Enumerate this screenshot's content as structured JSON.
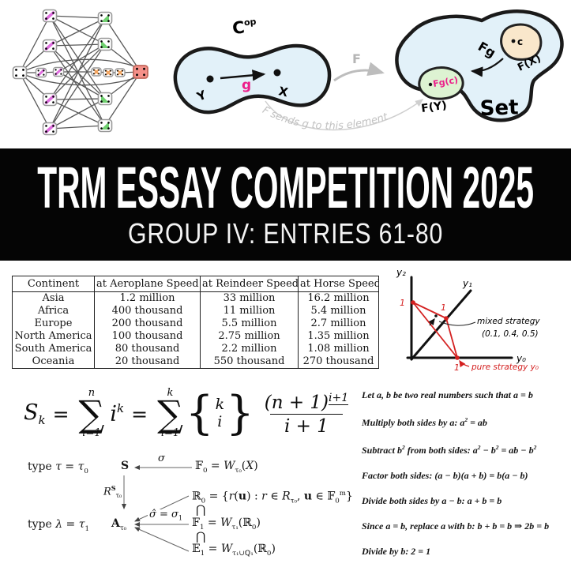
{
  "banner": {
    "title": "TRM ESSAY COMPETITION 2025",
    "subtitle": "GROUP IV: ENTRIES 61-80"
  },
  "category_diagram": {
    "cop_base": "C",
    "cop_sup": "op",
    "object_y": "Y",
    "object_x": "X",
    "morphism_g": "g",
    "functor_f": "F",
    "annotation": "F sends g to this element",
    "fg_arrow": "Fg",
    "element_c": "c",
    "fx_label": "F(X)",
    "fy_label": "F(Y)",
    "fgc_label": "Fg(c)",
    "set_label": "Set"
  },
  "table": {
    "headers": [
      "Continent",
      "at Aeroplane Speed",
      "at Reindeer Speed",
      "at Horse Speed"
    ],
    "rows": [
      [
        "Asia",
        "1.2 million",
        "33 million",
        "16.2 million"
      ],
      [
        "Africa",
        "400 thousand",
        "11 million",
        "5.4 million"
      ],
      [
        "Europe",
        "200 thousand",
        "5.5 million",
        "2.7 million"
      ],
      [
        "North America",
        "100 thousand",
        "2.75 million",
        "1.35 million"
      ],
      [
        "South America",
        "80 thousand",
        "2.2 million",
        "1.08 million"
      ],
      [
        "Oceania",
        "20 thousand",
        "550 thousand",
        "270 thousand"
      ]
    ]
  },
  "graph": {
    "y2_label": "y₂",
    "y1_label": "y₁",
    "y0_label": "y₀",
    "tick_one_y2": "1",
    "tick_one_y1": "1",
    "tick_one_y0": "1",
    "mixed_label": "mixed strategy",
    "mixed_point": "(0.1, 0.4, 0.5)",
    "pure_label": "pure strategy y₀"
  },
  "formula": {
    "lhs": "S",
    "lhs_sub": "k",
    "eq1": "=",
    "sum1_top": "n",
    "sigma1": "∑",
    "sum1_bot": "i=1",
    "term1": "i",
    "term1_sup": "k",
    "eq2": "=",
    "sum2_top": "k",
    "sigma2": "∑",
    "sum2_bot": "i=1",
    "brace_open": "{",
    "brace_close": "}",
    "stirling_top": "k",
    "stirling_bot": "i",
    "num_base": "(n + 1)",
    "num_sup": "i+1",
    "den": "i + 1"
  },
  "type_diagram": {
    "row1_label": "type <i>τ</i> = <i>τ</i><sub>0</sub>",
    "s_node": "<b>S</b>",
    "sigma": "<i>σ</i>",
    "f0": "𝔽<sub>0</sub> = <i>W</i><sub>τ₀</sub>(<i>X</i>)",
    "r_map": "<i>R</i><sup><b>S</b></sup><sub>τ₀</sub>",
    "row2_label": "type <i>λ</i> = <i>τ</i><sub>1</sub>",
    "a_node": "<b>A</b><sub>τ₀</sub>",
    "sigma1": "<i>σ̂</i> = <i>σ</i><sub>1</sub>",
    "r0": "ℝ<sub>0</sub> = {<i>r</i>(<b>u</b>) : <i>r</i> ∈ <i>R</i><sub>τ₀</sub>, <b>u</b> ∈ 𝔽<sub>0</sub><sup>m</sup>}",
    "cap1": "⋂",
    "f1": "𝔽<sub>1</sub> = <i>W</i><sub>τ₁</sub>(ℝ<sub>0</sub>)",
    "cap2": "⋂",
    "e1": "𝔼<sub>1</sub> = <i>W</i><sub>τ₁∪ℚ₁</sub>(ℝ<sub>0</sub>)"
  },
  "proof": {
    "lines": [
      "Let a, b be two real numbers such that a  =  b",
      "Multiply both sides by a:  a<sup>2</sup>  =  ab",
      "Subtract b<sup>2</sup>  from both sides:  a<sup>2</sup> − b<sup>2</sup>  =  ab − b<sup>2</sup>",
      "Factor both sides:  (a − b)(a + b)  =  b(a − b)",
      "Divide both sides by a − b:  a + b  =  b",
      "Since a  =  b, replace a with b:  b + b  =  b ⇒ 2b  =  b",
      "Divide by b:  2  =  1"
    ]
  },
  "colors": {
    "banner_bg": "#050505",
    "banner_text": "#ffffff",
    "magenta_accent": "#ec1e8a",
    "graph_red": "#d42020",
    "blob_blue": "#e2f1f9",
    "blob_green": "#ddf3d2",
    "blob_peach": "#f9e7cb",
    "node_magenta": "#df6fdf",
    "node_green": "#6fcf6f",
    "node_orange": "#f2a25c",
    "node_red": "#f59089"
  }
}
